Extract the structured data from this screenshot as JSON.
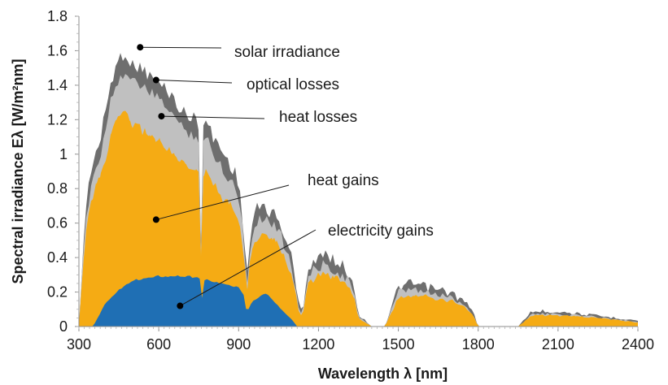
{
  "chart_data": {
    "type": "area",
    "title": "",
    "xlabel": "Wavelength λ [nm]",
    "ylabel": "Spectral irradiance Eλ [W/m²nm]",
    "xlim": [
      300,
      2400
    ],
    "ylim": [
      0,
      1.8
    ],
    "xticks": [
      "300",
      "600",
      "900",
      "1200",
      "1500",
      "1800",
      "2100",
      "2400"
    ],
    "yticks": [
      "0",
      "0.2",
      "0.4",
      "0.6",
      "0.8",
      "1",
      "1.2",
      "1.4",
      "1.6",
      "1.8"
    ],
    "grid": false,
    "colors": {
      "solar_irradiance": "#6e6e6e",
      "optical_losses": "#c0c0c0",
      "heat_gains": "#f5ab14",
      "electricity_gains": "#1f6fb4"
    },
    "series": [
      {
        "name": "solar irradiance",
        "x": [
          300,
          310,
          320,
          330,
          345,
          360,
          380,
          400,
          420,
          440,
          460,
          480,
          500,
          530,
          560,
          600,
          640,
          680,
          720,
          740,
          755,
          760,
          765,
          780,
          800,
          830,
          860,
          890,
          910,
          920,
          930,
          940,
          950,
          960,
          980,
          1000,
          1040,
          1070,
          1090,
          1110,
          1120,
          1130,
          1140,
          1160,
          1200,
          1250,
          1300,
          1330,
          1350,
          1400,
          1450,
          1500,
          1560,
          1600,
          1700,
          1750,
          1780,
          1800,
          1950,
          1970,
          2000,
          2050,
          2100,
          2200,
          2300,
          2400
        ],
        "y": [
          0,
          0.35,
          0.6,
          0.78,
          0.95,
          1.05,
          1.1,
          1.3,
          1.45,
          1.55,
          1.62,
          1.62,
          1.55,
          1.55,
          1.5,
          1.45,
          1.4,
          1.3,
          1.25,
          1.25,
          1.2,
          0.3,
          1.2,
          1.23,
          1.15,
          1.08,
          1.0,
          0.93,
          0.75,
          0.6,
          0.3,
          0.5,
          0.62,
          0.7,
          0.74,
          0.73,
          0.68,
          0.58,
          0.5,
          0.35,
          0.2,
          0.12,
          0.1,
          0.38,
          0.45,
          0.44,
          0.38,
          0.3,
          0.08,
          0,
          0,
          0.26,
          0.28,
          0.26,
          0.22,
          0.16,
          0.1,
          0,
          0,
          0.04,
          0.1,
          0.1,
          0.1,
          0.08,
          0.06,
          0.04
        ]
      },
      {
        "name": "optical losses",
        "x": [
          300,
          310,
          320,
          330,
          345,
          360,
          380,
          400,
          420,
          440,
          460,
          480,
          500,
          530,
          560,
          600,
          640,
          680,
          720,
          740,
          755,
          760,
          765,
          780,
          800,
          830,
          860,
          890,
          910,
          920,
          930,
          940,
          950,
          960,
          980,
          1000,
          1040,
          1070,
          1090,
          1110,
          1120,
          1130,
          1140,
          1160,
          1200,
          1250,
          1300,
          1330,
          1350,
          1400,
          1450,
          1500,
          1560,
          1600,
          1700,
          1750,
          1780,
          1800,
          1950,
          1970,
          2000,
          2050,
          2100,
          2200,
          2300,
          2400
        ],
        "y": [
          0,
          0.3,
          0.53,
          0.7,
          0.85,
          0.95,
          1.0,
          1.2,
          1.35,
          1.45,
          1.5,
          1.5,
          1.45,
          1.44,
          1.4,
          1.35,
          1.3,
          1.2,
          1.15,
          1.15,
          1.1,
          0.25,
          1.1,
          1.13,
          1.05,
          0.98,
          0.9,
          0.85,
          0.68,
          0.54,
          0.25,
          0.44,
          0.55,
          0.63,
          0.67,
          0.66,
          0.62,
          0.52,
          0.45,
          0.3,
          0.17,
          0.1,
          0.08,
          0.32,
          0.39,
          0.38,
          0.32,
          0.25,
          0.06,
          0,
          0,
          0.22,
          0.24,
          0.22,
          0.19,
          0.14,
          0.08,
          0,
          0,
          0.03,
          0.08,
          0.08,
          0.08,
          0.07,
          0.05,
          0.03
        ]
      },
      {
        "name": "heat losses",
        "x": [
          300,
          310,
          320,
          330,
          345,
          360,
          380,
          400,
          420,
          440,
          460,
          480,
          500,
          530,
          560,
          600,
          640,
          680,
          720,
          740,
          755,
          760,
          765,
          780,
          800,
          830,
          860,
          890,
          910,
          920,
          930,
          940,
          950,
          960,
          980,
          1000,
          1040,
          1070,
          1090,
          1110,
          1120,
          1130,
          1140,
          1160,
          1200,
          1250,
          1300,
          1330,
          1350,
          1400,
          1450,
          1500,
          1560,
          1600,
          1700,
          1750,
          1780,
          1800,
          1950,
          1970,
          2000,
          2050,
          2100,
          2200,
          2300,
          2400
        ],
        "y": [
          0,
          0.25,
          0.45,
          0.6,
          0.74,
          0.83,
          0.88,
          1.0,
          1.12,
          1.22,
          1.26,
          1.25,
          1.2,
          1.18,
          1.14,
          1.1,
          1.05,
          0.98,
          0.93,
          0.93,
          0.9,
          0.2,
          0.9,
          0.92,
          0.86,
          0.8,
          0.74,
          0.7,
          0.56,
          0.45,
          0.2,
          0.36,
          0.45,
          0.52,
          0.56,
          0.55,
          0.51,
          0.43,
          0.37,
          0.25,
          0.14,
          0.08,
          0.06,
          0.26,
          0.32,
          0.32,
          0.27,
          0.21,
          0.05,
          0,
          0,
          0.18,
          0.2,
          0.19,
          0.16,
          0.12,
          0.07,
          0,
          0,
          0.025,
          0.07,
          0.07,
          0.07,
          0.06,
          0.045,
          0.025
        ]
      },
      {
        "name": "heat gains",
        "x": [
          300,
          310,
          320,
          330,
          345,
          360,
          380,
          400,
          420,
          440,
          460,
          480,
          500,
          530,
          560,
          600,
          640,
          680,
          720,
          740,
          755,
          760,
          765,
          780,
          800,
          830,
          860,
          890,
          910,
          920,
          930,
          940,
          950,
          960,
          980,
          1000,
          1040,
          1070,
          1090,
          1110,
          1120,
          1130,
          1140,
          1160,
          1200,
          1250,
          1300,
          1330,
          1350,
          1400,
          1450,
          1500,
          1560,
          1600,
          1700,
          1750,
          1780,
          1800,
          1950,
          1970,
          2000,
          2050,
          2100,
          2200,
          2300,
          2400
        ],
        "y": [
          0,
          0.25,
          0.45,
          0.6,
          0.74,
          0.83,
          0.88,
          1.0,
          1.12,
          1.22,
          1.26,
          1.25,
          1.2,
          1.18,
          1.14,
          1.1,
          1.05,
          0.98,
          0.93,
          0.93,
          0.9,
          0.2,
          0.9,
          0.92,
          0.86,
          0.8,
          0.74,
          0.7,
          0.56,
          0.45,
          0.2,
          0.36,
          0.45,
          0.52,
          0.56,
          0.55,
          0.51,
          0.43,
          0.37,
          0.25,
          0.14,
          0.08,
          0.06,
          0.26,
          0.32,
          0.32,
          0.27,
          0.21,
          0.05,
          0,
          0,
          0.18,
          0.2,
          0.19,
          0.16,
          0.12,
          0.07,
          0,
          0,
          0.025,
          0.07,
          0.07,
          0.07,
          0.06,
          0.045,
          0.025
        ]
      },
      {
        "name": "electricity gains",
        "x": [
          350,
          360,
          380,
          400,
          450,
          500,
          550,
          600,
          650,
          700,
          740,
          755,
          760,
          765,
          800,
          850,
          900,
          920,
          930,
          950,
          1000,
          1050,
          1100,
          1120
        ],
        "y": [
          0,
          0.02,
          0.08,
          0.14,
          0.22,
          0.27,
          0.29,
          0.3,
          0.3,
          0.3,
          0.29,
          0.28,
          0.05,
          0.28,
          0.27,
          0.25,
          0.23,
          0.18,
          0.08,
          0.15,
          0.2,
          0.12,
          0.04,
          0
        ]
      }
    ],
    "annotations": [
      {
        "label": "solar irradiance",
        "x": 530,
        "y": 1.62
      },
      {
        "label": "optical losses",
        "x": 590,
        "y": 1.43
      },
      {
        "label": "heat losses",
        "x": 610,
        "y": 1.22
      },
      {
        "label": "heat gains",
        "x": 590,
        "y": 0.62
      },
      {
        "label": "electricity gains",
        "x": 680,
        "y": 0.12
      }
    ]
  }
}
